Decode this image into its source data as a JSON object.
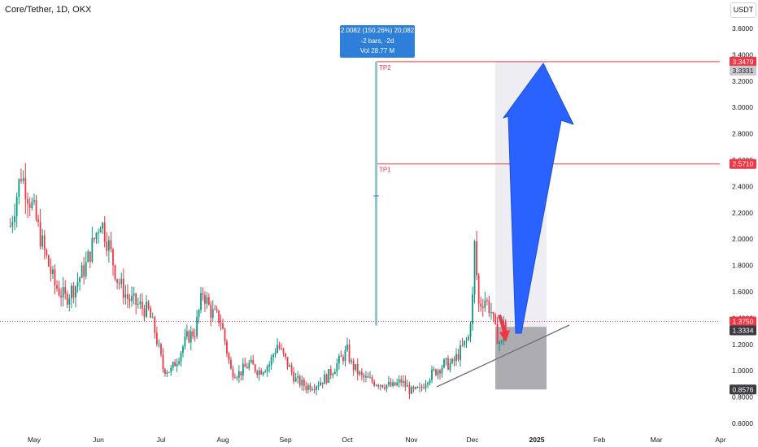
{
  "header": {
    "symbol_title": "Core/Tether, 1D, OKX",
    "currency": "USDT"
  },
  "measure": {
    "line1": "2.0082 (150.26%) 20,082",
    "line2": "-2 bars, -2d",
    "line3": "Vol 28.77 M"
  },
  "colors": {
    "up": "#089981",
    "down": "#f23645",
    "target_line": "#f23645",
    "arrow_up": "#2962ff",
    "projection_box": "#e8e8ee",
    "stop_box": "#a3a3a8",
    "measure": "#2e7fd9"
  },
  "chart_data": {
    "type": "candlestick",
    "title": "Core/Tether, 1D, OKX",
    "ylim": [
      0.6,
      3.7
    ],
    "y_ticks": [
      "0.6000",
      "0.8000",
      "1.0000",
      "1.2000",
      "1.4000",
      "1.6000",
      "1.8000",
      "2.0000",
      "2.2000",
      "2.4000",
      "2.6000",
      "2.8000",
      "3.0000",
      "3.2000",
      "3.4000",
      "3.6000"
    ],
    "x_ticks": [
      {
        "label": "May",
        "bold": false
      },
      {
        "label": "Jun",
        "bold": false
      },
      {
        "label": "Jul",
        "bold": false
      },
      {
        "label": "Aug",
        "bold": false
      },
      {
        "label": "Sep",
        "bold": false
      },
      {
        "label": "Oct",
        "bold": false
      },
      {
        "label": "Nov",
        "bold": false
      },
      {
        "label": "Dec",
        "bold": false
      },
      {
        "label": "2025",
        "bold": true
      },
      {
        "label": "Feb",
        "bold": false
      },
      {
        "label": "Mar",
        "bold": false
      },
      {
        "label": "Apr",
        "bold": false
      }
    ],
    "price_levels": [
      {
        "value": 3.3479,
        "label": "3.3479",
        "style": "target"
      },
      {
        "value": 3.3331,
        "label": "3.3331",
        "style": "grey"
      },
      {
        "value": 2.571,
        "label": "2.5710",
        "style": "target"
      },
      {
        "value": 1.375,
        "label": "1.3750",
        "style": "last"
      },
      {
        "value": 1.3334,
        "label": "1.3334",
        "style": "dark"
      },
      {
        "value": 0.8576,
        "label": "0.8576",
        "style": "dark"
      }
    ],
    "annotations": {
      "tp1": {
        "label": "TP1",
        "value": 2.571
      },
      "tp2": {
        "label": "TP2",
        "value": 3.3479
      }
    },
    "price_path": [
      [
        "Apr 20",
        2.1
      ],
      [
        "Apr 25",
        2.5
      ],
      [
        "May 1",
        2.2
      ],
      [
        "May 6",
        1.9
      ],
      [
        "May 11",
        1.65
      ],
      [
        "May 16",
        1.55
      ],
      [
        "May 21",
        1.65
      ],
      [
        "May 26",
        1.8
      ],
      [
        "May 30",
        2.0
      ],
      [
        "Jun 2",
        2.15
      ],
      [
        "Jun 6",
        1.95
      ],
      [
        "Jun 10",
        1.7
      ],
      [
        "Jun 15",
        1.55
      ],
      [
        "Jun 20",
        1.5
      ],
      [
        "Jun 25",
        1.45
      ],
      [
        "Jun 28",
        1.3
      ],
      [
        "Jul 2",
        1.02
      ],
      [
        "Jul 6",
        1.0
      ],
      [
        "Jul 10",
        1.12
      ],
      [
        "Jul 14",
        1.25
      ],
      [
        "Jul 18",
        1.3
      ],
      [
        "Jul 22",
        1.6
      ],
      [
        "Jul 26",
        1.45
      ],
      [
        "Jul 31",
        1.38
      ],
      [
        "Aug 5",
        1.0
      ],
      [
        "Aug 9",
        0.98
      ],
      [
        "Aug 14",
        1.05
      ],
      [
        "Aug 19",
        1.0
      ],
      [
        "Aug 24",
        1.05
      ],
      [
        "Aug 28",
        1.2
      ],
      [
        "Sep 2",
        1.05
      ],
      [
        "Sep 6",
        0.93
      ],
      [
        "Sep 11",
        0.88
      ],
      [
        "Sep 16",
        0.9
      ],
      [
        "Sep 21",
        0.95
      ],
      [
        "Sep 26",
        1.05
      ],
      [
        "Oct 1",
        1.15
      ],
      [
        "Oct 3",
        1.05
      ],
      [
        "Oct 8",
        0.95
      ],
      [
        "Oct 13",
        0.92
      ],
      [
        "Oct 18",
        0.9
      ],
      [
        "Oct 23",
        0.88
      ],
      [
        "Oct 27",
        0.92
      ],
      [
        "Nov 1",
        0.84
      ],
      [
        "Nov 5",
        0.85
      ],
      [
        "Nov 9",
        0.95
      ],
      [
        "Nov 13",
        1.0
      ],
      [
        "Nov 17",
        1.05
      ],
      [
        "Nov 21",
        1.05
      ],
      [
        "Nov 25",
        1.15
      ],
      [
        "Nov 29",
        1.25
      ],
      [
        "Dec 1",
        1.55
      ],
      [
        "Dec 2",
        1.95
      ],
      [
        "Dec 4",
        1.5
      ],
      [
        "Dec 7",
        1.55
      ],
      [
        "Dec 10",
        1.45
      ],
      [
        "Dec 12",
        1.3
      ],
      [
        "Dec 14",
        1.22
      ],
      [
        "Dec 15",
        1.2
      ],
      [
        "Dec 16",
        1.4
      ],
      [
        "Dec 17",
        1.3
      ]
    ]
  }
}
